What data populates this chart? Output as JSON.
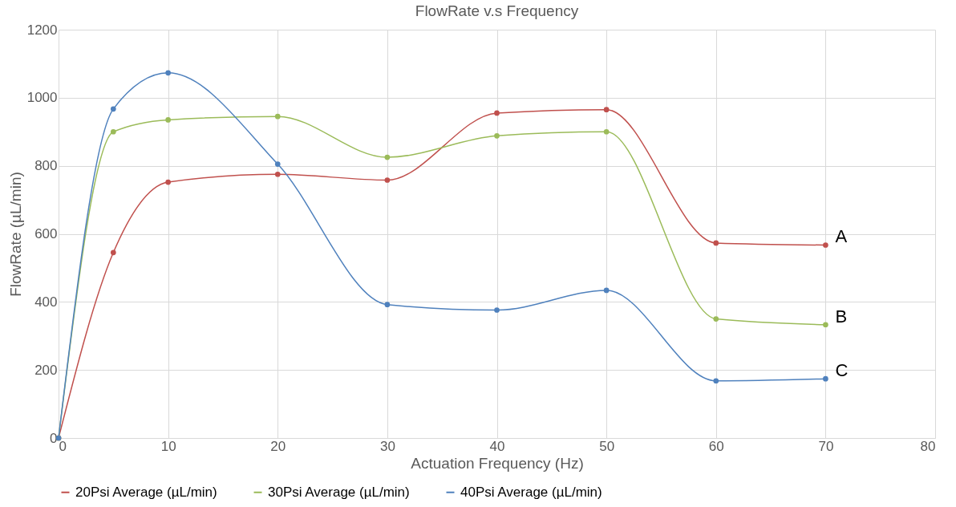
{
  "chart_data": {
    "type": "line",
    "title": "FlowRate v.s Frequency",
    "xlabel": "Actuation Frequency (Hz)",
    "ylabel": "FlowRate (µL/min)",
    "x": [
      0,
      5,
      10,
      20,
      30,
      40,
      50,
      60,
      70
    ],
    "series": [
      {
        "name": "20Psi Average (µL/min)",
        "color": "#c0504d",
        "values": [
          0,
          545,
          752,
          775,
          758,
          955,
          965,
          573,
          567
        ]
      },
      {
        "name": "30Psi Average (µL/min)",
        "color": "#9bbb59",
        "values": [
          0,
          900,
          935,
          945,
          825,
          888,
          900,
          350,
          333
        ]
      },
      {
        "name": "40Psi Average (µL/min)",
        "color": "#4f81bd",
        "values": [
          0,
          967,
          1073,
          805,
          392,
          376,
          434,
          168,
          174
        ]
      }
    ],
    "xlim": [
      0,
      80
    ],
    "xticks": [
      0,
      10,
      20,
      30,
      40,
      50,
      60,
      70,
      80
    ],
    "ylim": [
      0,
      1200
    ],
    "yticks": [
      0,
      200,
      400,
      600,
      800,
      {
        "value": 1000,
        "label": "1000"
      },
      {
        "value": 1200,
        "label": "1200"
      }
    ],
    "grid": true,
    "legend": "bottom",
    "marker": "circle",
    "line_style": "solid",
    "annotations": [
      "A",
      "B",
      "C"
    ]
  }
}
